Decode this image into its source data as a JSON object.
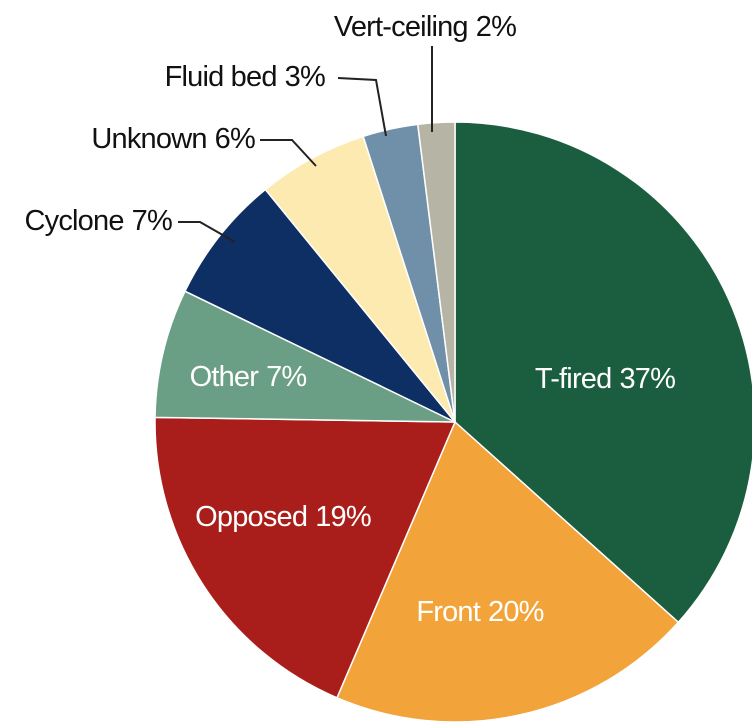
{
  "chart_data": {
    "type": "pie",
    "categories": [
      "T-fired",
      "Front",
      "Opposed",
      "Other",
      "Cyclone",
      "Unknown",
      "Fluid bed",
      "Vert-ceiling"
    ],
    "values": [
      37,
      20,
      19,
      7,
      7,
      6,
      3,
      2
    ],
    "value_labels": [
      "37%",
      "20%",
      "19%",
      "7%",
      "7%",
      "6%",
      "3%",
      "2%"
    ],
    "colors": [
      "#1b5e3f",
      "#f2a33a",
      "#a91e1a",
      "#6a9e85",
      "#0d2f63",
      "#fdeab0",
      "#6f90a8",
      "#b6b4a4"
    ]
  }
}
